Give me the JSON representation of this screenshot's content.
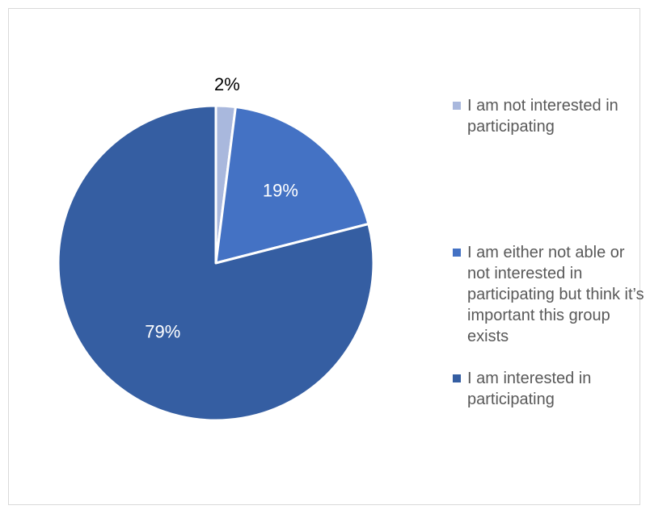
{
  "chart_data": {
    "type": "pie",
    "title": "",
    "slices": [
      {
        "label": "I am not interested in participating",
        "value": 2,
        "display": "2%",
        "color": "#a9b8dd"
      },
      {
        "label": "I am either not able or not interested in participating but think it’s important this group exists",
        "value": 19,
        "display": "19%",
        "color": "#4472c4"
      },
      {
        "label": "I am interested in participating",
        "value": 79,
        "display": "79%",
        "color": "#355ea2"
      }
    ],
    "legend_position": "right"
  }
}
